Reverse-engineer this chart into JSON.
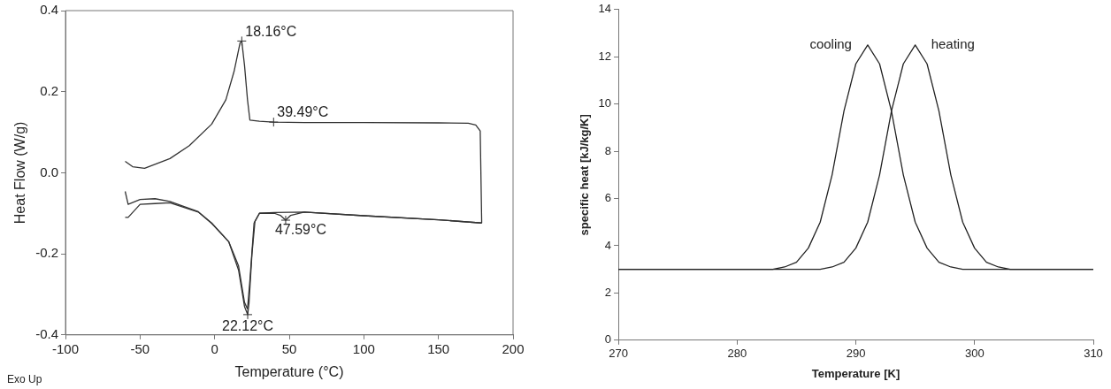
{
  "chart_data": [
    {
      "type": "line",
      "xlabel": "Temperature (°C)",
      "ylabel": "Heat Flow (W/g)",
      "xlim": [
        -100,
        200
      ],
      "xticks": [
        -100,
        -50,
        0,
        50,
        100,
        150,
        200
      ],
      "ylim": [
        -0.4,
        0.4
      ],
      "yticks": [
        -0.4,
        -0.2,
        {
          "value": 0,
          "label": "0.0"
        },
        0.2,
        0.4
      ],
      "grid": false,
      "legend": false,
      "marker": "none",
      "line_style": "solid",
      "series": [
        {
          "color": "#333333",
          "x": [
            179,
            178,
            175,
            170,
            150,
            100,
            60,
            39.49,
            30,
            23.6,
            22,
            20,
            18.16,
            17,
            13,
            7.5,
            -2,
            -17,
            -30,
            -47,
            -55,
            -60
          ],
          "values": [
            -0.124,
            0.103,
            0.118,
            0.122,
            0.123,
            0.124,
            0.124,
            0.125,
            0.127,
            0.13,
            0.18,
            0.265,
            0.325,
            0.32,
            0.25,
            0.18,
            0.12,
            0.067,
            0.035,
            0.011,
            0.015,
            0.028
          ]
        },
        {
          "color": "#333333",
          "x": [
            -60,
            -58,
            -50,
            -40,
            -30,
            -11,
            -2,
            9.4,
            16,
            20,
            22,
            23.6,
            26.4,
            30,
            40,
            44,
            47.59,
            51,
            60,
            100,
            150,
            179
          ],
          "values": [
            -0.046,
            -0.078,
            -0.066,
            -0.064,
            -0.071,
            -0.096,
            -0.124,
            -0.17,
            -0.23,
            -0.32,
            -0.336,
            -0.266,
            -0.124,
            -0.1,
            -0.1,
            -0.105,
            -0.117,
            -0.105,
            -0.097,
            -0.106,
            -0.116,
            -0.124
          ]
        },
        {
          "color": "#333333",
          "x": [
            -60,
            -58,
            -50,
            -40,
            -30,
            -11,
            -2,
            9.4,
            16,
            20,
            22.12,
            23,
            25,
            27,
            30,
            40,
            60,
            100,
            150,
            179
          ],
          "values": [
            -0.11,
            -0.11,
            -0.078,
            -0.076,
            -0.074,
            -0.097,
            -0.125,
            -0.17,
            -0.24,
            -0.33,
            -0.35,
            -0.322,
            -0.2,
            -0.12,
            -0.1,
            -0.098,
            -0.097,
            -0.106,
            -0.116,
            -0.124
          ]
        }
      ],
      "annotations": [
        {
          "text": "18.16°C",
          "x": 18.16,
          "y": 0.325
        },
        {
          "text": "39.49°C",
          "x": 39.49,
          "y": 0.125
        },
        {
          "text": "47.59°C",
          "x": 47.59,
          "y": -0.117
        },
        {
          "text": "22.12°C",
          "x": 22.12,
          "y": -0.35
        },
        "Exo Up"
      ]
    },
    {
      "type": "line",
      "xlabel": "Temperature [K]",
      "ylabel": "specific heat [kJ/kg/K]",
      "xlim": [
        270,
        310
      ],
      "xticks": [
        270,
        280,
        290,
        300,
        310
      ],
      "ylim": [
        0,
        14
      ],
      "yticks": [
        0,
        2,
        4,
        6,
        8,
        10,
        12,
        14
      ],
      "grid": false,
      "legend": false,
      "marker": "none",
      "line_style": "solid",
      "series": [
        {
          "name": "cooling",
          "color": "#222222",
          "x": [
            270,
            281,
            282,
            283,
            284,
            285,
            286,
            287,
            288,
            289,
            290,
            291,
            292,
            293,
            294,
            295,
            296,
            297,
            298,
            299,
            300,
            310
          ],
          "values": [
            3,
            3,
            3,
            3,
            3.1,
            3.3,
            3.9,
            5,
            7,
            9.7,
            11.7,
            12.5,
            11.7,
            9.7,
            7,
            5,
            3.9,
            3.3,
            3.1,
            3,
            3,
            3
          ]
        },
        {
          "name": "heating",
          "color": "#222222",
          "x": [
            270,
            285,
            286,
            287,
            288,
            289,
            290,
            291,
            292,
            293,
            294,
            295,
            296,
            297,
            298,
            299,
            300,
            301,
            302,
            303,
            304,
            310
          ],
          "values": [
            3,
            3,
            3,
            3,
            3.1,
            3.3,
            3.9,
            5,
            7,
            9.7,
            11.7,
            12.5,
            11.7,
            9.7,
            7,
            5,
            3.9,
            3.3,
            3.1,
            3,
            3,
            3
          ]
        }
      ]
    }
  ]
}
